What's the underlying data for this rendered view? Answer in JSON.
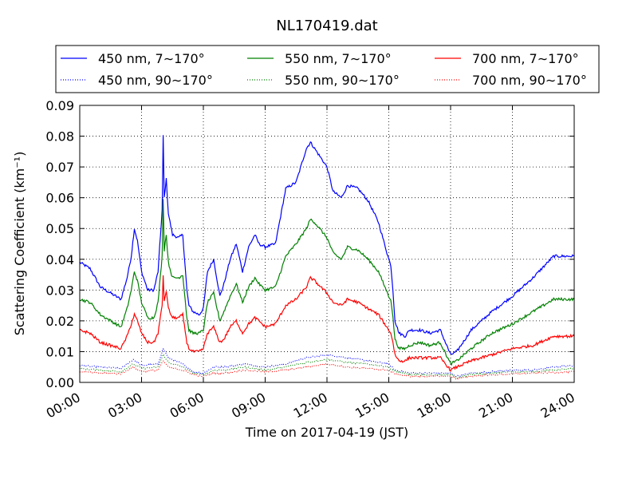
{
  "chart_data": {
    "type": "line",
    "title": "NL170419.dat",
    "xlabel": "Time on 2017-04-19 (JST)",
    "ylabel": "Scattering Coefficient (km⁻¹)",
    "xlim": [
      0,
      24
    ],
    "ylim": [
      0,
      0.09
    ],
    "x_ticks": [
      "00:00",
      "03:00",
      "06:00",
      "09:00",
      "12:00",
      "15:00",
      "18:00",
      "21:00",
      "24:00"
    ],
    "y_ticks": [
      "0.00",
      "0.01",
      "0.02",
      "0.03",
      "0.04",
      "0.05",
      "0.06",
      "0.07",
      "0.08",
      "0.09"
    ],
    "grid": true,
    "legend_position": "top",
    "series": [
      {
        "name": "450 nm, 7∼170°",
        "color": "#0000ff",
        "style": "solid",
        "x": [
          0,
          0.5,
          1,
          1.5,
          2,
          2.3,
          2.5,
          2.65,
          2.8,
          3,
          3.3,
          3.6,
          3.8,
          4,
          4.05,
          4.1,
          4.2,
          4.3,
          4.5,
          4.8,
          5,
          5.2,
          5.3,
          5.5,
          5.8,
          6,
          6.2,
          6.5,
          6.8,
          7,
          7.3,
          7.6,
          7.9,
          8.2,
          8.5,
          8.7,
          9,
          9.5,
          10,
          10.5,
          11,
          11.2,
          11.4,
          12,
          12.3,
          12.7,
          13,
          13.5,
          14,
          14.5,
          15,
          15.1,
          15.2,
          15.3,
          15.5,
          15.8,
          16,
          16.5,
          17,
          17.5,
          18,
          18.3,
          19,
          20,
          21,
          22,
          23,
          24
        ],
        "y": [
          0.039,
          0.037,
          0.031,
          0.029,
          0.027,
          0.034,
          0.041,
          0.05,
          0.046,
          0.036,
          0.03,
          0.03,
          0.036,
          0.056,
          0.08,
          0.06,
          0.066,
          0.055,
          0.048,
          0.047,
          0.048,
          0.03,
          0.025,
          0.023,
          0.022,
          0.024,
          0.036,
          0.04,
          0.028,
          0.032,
          0.04,
          0.045,
          0.036,
          0.044,
          0.048,
          0.045,
          0.044,
          0.045,
          0.063,
          0.065,
          0.076,
          0.078,
          0.076,
          0.07,
          0.062,
          0.06,
          0.064,
          0.063,
          0.059,
          0.052,
          0.04,
          0.038,
          0.03,
          0.02,
          0.016,
          0.015,
          0.017,
          0.017,
          0.016,
          0.017,
          0.009,
          0.01,
          0.017,
          0.023,
          0.028,
          0.034,
          0.041,
          0.041
        ]
      },
      {
        "name": "450 nm, 90∼170°",
        "color": "#0000ff",
        "style": "dotted",
        "x": [
          0,
          1,
          2,
          2.6,
          3,
          3.8,
          4.05,
          4.3,
          5,
          5.5,
          6,
          6.5,
          7,
          8,
          9,
          10,
          11,
          12,
          13,
          14,
          15,
          15.3,
          16,
          17,
          18,
          18.3,
          19,
          20,
          21,
          22,
          23,
          24
        ],
        "y": [
          0.0055,
          0.005,
          0.0045,
          0.0075,
          0.0055,
          0.006,
          0.011,
          0.008,
          0.006,
          0.0035,
          0.003,
          0.005,
          0.005,
          0.006,
          0.005,
          0.006,
          0.008,
          0.009,
          0.008,
          0.007,
          0.006,
          0.004,
          0.003,
          0.003,
          0.003,
          0.002,
          0.003,
          0.0035,
          0.004,
          0.004,
          0.005,
          0.0055
        ]
      },
      {
        "name": "550 nm, 7∼170°",
        "color": "#008000",
        "style": "solid",
        "x": [
          0,
          0.5,
          1,
          1.5,
          2,
          2.3,
          2.5,
          2.65,
          2.8,
          3,
          3.3,
          3.6,
          3.8,
          4,
          4.05,
          4.1,
          4.2,
          4.3,
          4.5,
          4.8,
          5,
          5.2,
          5.3,
          5.5,
          5.8,
          6,
          6.2,
          6.5,
          6.8,
          7,
          7.3,
          7.6,
          7.9,
          8.2,
          8.5,
          8.7,
          9,
          9.5,
          10,
          10.5,
          11,
          11.2,
          11.4,
          12,
          12.3,
          12.7,
          13,
          13.5,
          14,
          14.5,
          15,
          15.1,
          15.2,
          15.3,
          15.5,
          15.8,
          16,
          16.5,
          17,
          17.5,
          18,
          18.3,
          19,
          20,
          21,
          22,
          23,
          24
        ],
        "y": [
          0.027,
          0.026,
          0.022,
          0.02,
          0.018,
          0.024,
          0.03,
          0.036,
          0.033,
          0.026,
          0.021,
          0.021,
          0.026,
          0.041,
          0.06,
          0.043,
          0.048,
          0.039,
          0.034,
          0.034,
          0.035,
          0.021,
          0.017,
          0.016,
          0.016,
          0.017,
          0.026,
          0.029,
          0.02,
          0.023,
          0.028,
          0.032,
          0.026,
          0.031,
          0.034,
          0.032,
          0.03,
          0.031,
          0.041,
          0.045,
          0.05,
          0.053,
          0.052,
          0.047,
          0.042,
          0.04,
          0.044,
          0.043,
          0.04,
          0.036,
          0.028,
          0.027,
          0.021,
          0.014,
          0.011,
          0.011,
          0.012,
          0.013,
          0.012,
          0.013,
          0.006,
          0.007,
          0.011,
          0.016,
          0.019,
          0.023,
          0.027,
          0.027
        ]
      },
      {
        "name": "550 nm, 90∼170°",
        "color": "#008000",
        "style": "dotted",
        "x": [
          0,
          1,
          2,
          2.6,
          3,
          3.8,
          4.05,
          4.3,
          5,
          5.5,
          6,
          6.5,
          7,
          8,
          9,
          10,
          11,
          12,
          13,
          14,
          15,
          15.3,
          16,
          17,
          18,
          18.3,
          19,
          20,
          21,
          22,
          23,
          24
        ],
        "y": [
          0.0045,
          0.004,
          0.0035,
          0.006,
          0.0045,
          0.005,
          0.009,
          0.0065,
          0.005,
          0.003,
          0.0025,
          0.004,
          0.004,
          0.005,
          0.004,
          0.005,
          0.0065,
          0.0075,
          0.0065,
          0.006,
          0.005,
          0.0035,
          0.0025,
          0.0025,
          0.0025,
          0.0015,
          0.0025,
          0.003,
          0.0035,
          0.0035,
          0.004,
          0.0045
        ]
      },
      {
        "name": "700 nm, 7∼170°",
        "color": "#ff0000",
        "style": "solid",
        "x": [
          0,
          0.5,
          1,
          1.5,
          2,
          2.3,
          2.5,
          2.65,
          2.8,
          3,
          3.3,
          3.6,
          3.8,
          4,
          4.05,
          4.1,
          4.2,
          4.3,
          4.5,
          4.8,
          5,
          5.2,
          5.3,
          5.5,
          5.8,
          6,
          6.2,
          6.5,
          6.8,
          7,
          7.3,
          7.6,
          7.9,
          8.2,
          8.5,
          8.7,
          9,
          9.5,
          10,
          10.5,
          11,
          11.2,
          11.4,
          12,
          12.3,
          12.7,
          13,
          13.5,
          14,
          14.5,
          15,
          15.1,
          15.2,
          15.3,
          15.5,
          15.8,
          16,
          16.5,
          17,
          17.5,
          18,
          18.3,
          19,
          20,
          21,
          22,
          23,
          24
        ],
        "y": [
          0.017,
          0.016,
          0.013,
          0.012,
          0.011,
          0.015,
          0.019,
          0.022,
          0.02,
          0.016,
          0.013,
          0.013,
          0.016,
          0.025,
          0.035,
          0.026,
          0.03,
          0.024,
          0.021,
          0.021,
          0.022,
          0.013,
          0.011,
          0.01,
          0.01,
          0.011,
          0.016,
          0.018,
          0.013,
          0.014,
          0.018,
          0.02,
          0.016,
          0.019,
          0.021,
          0.02,
          0.018,
          0.019,
          0.025,
          0.027,
          0.031,
          0.034,
          0.033,
          0.029,
          0.026,
          0.025,
          0.027,
          0.026,
          0.024,
          0.022,
          0.017,
          0.016,
          0.013,
          0.009,
          0.007,
          0.007,
          0.008,
          0.008,
          0.008,
          0.008,
          0.004,
          0.005,
          0.007,
          0.009,
          0.011,
          0.012,
          0.015,
          0.015
        ]
      },
      {
        "name": "700 nm, 90∼170°",
        "color": "#ff0000",
        "style": "dotted",
        "x": [
          0,
          1,
          2,
          2.6,
          3,
          3.8,
          4.05,
          4.3,
          5,
          5.5,
          6,
          6.5,
          7,
          8,
          9,
          10,
          11,
          12,
          13,
          14,
          15,
          15.3,
          16,
          17,
          18,
          18.3,
          19,
          20,
          21,
          22,
          23,
          24
        ],
        "y": [
          0.0035,
          0.003,
          0.0028,
          0.005,
          0.0035,
          0.004,
          0.007,
          0.005,
          0.004,
          0.0025,
          0.002,
          0.003,
          0.003,
          0.004,
          0.0035,
          0.004,
          0.005,
          0.006,
          0.005,
          0.0045,
          0.004,
          0.0028,
          0.002,
          0.002,
          0.002,
          0.0012,
          0.002,
          0.0025,
          0.0028,
          0.003,
          0.0032,
          0.0035
        ]
      }
    ]
  }
}
